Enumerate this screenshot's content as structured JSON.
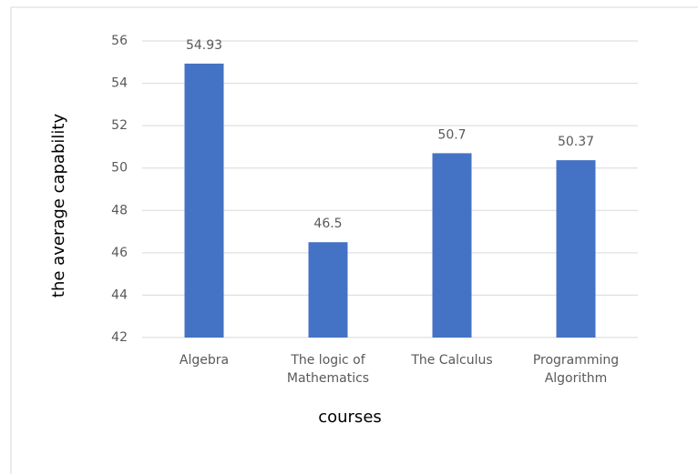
{
  "chart_data": {
    "type": "bar",
    "x_label": "courses",
    "y_label": "the average capability",
    "categories": [
      "Algebra",
      "The logic of Mathematics",
      "The Calculus",
      "Programming Algorithm"
    ],
    "values": [
      54.93,
      46.5,
      50.7,
      50.37
    ],
    "color": "#4472c4",
    "ylim": [
      42,
      56
    ],
    "yticks": [
      42,
      44,
      46,
      48,
      50,
      52,
      54,
      56
    ],
    "grid": true
  }
}
